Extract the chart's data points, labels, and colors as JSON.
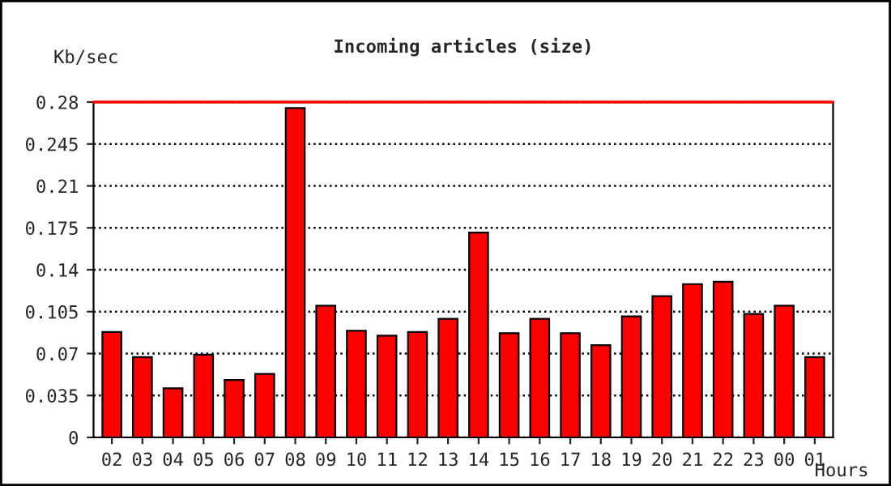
{
  "chart_data": {
    "type": "bar",
    "title": "Incoming articles (size)",
    "ylabel": "Kb/sec",
    "xlabel": "Hours",
    "categories": [
      "02",
      "03",
      "04",
      "05",
      "06",
      "07",
      "08",
      "09",
      "10",
      "11",
      "12",
      "13",
      "14",
      "15",
      "16",
      "17",
      "18",
      "19",
      "20",
      "21",
      "22",
      "23",
      "00",
      "01"
    ],
    "values": [
      0.088,
      0.067,
      0.041,
      0.069,
      0.048,
      0.053,
      0.275,
      0.11,
      0.089,
      0.085,
      0.088,
      0.099,
      0.171,
      0.087,
      0.099,
      0.087,
      0.077,
      0.101,
      0.118,
      0.128,
      0.13,
      0.103,
      0.11,
      0.067
    ],
    "color": "#ff0000",
    "ylim": [
      0,
      0.28
    ],
    "yticks": [
      0,
      0.035,
      0.07,
      0.105,
      0.14,
      0.175,
      0.21,
      0.245,
      0.28
    ],
    "grid": "y",
    "line_style": "dotted",
    "ref_lines": [
      {
        "axis": "y",
        "value": 0.28,
        "color": "#ff0000"
      }
    ]
  }
}
